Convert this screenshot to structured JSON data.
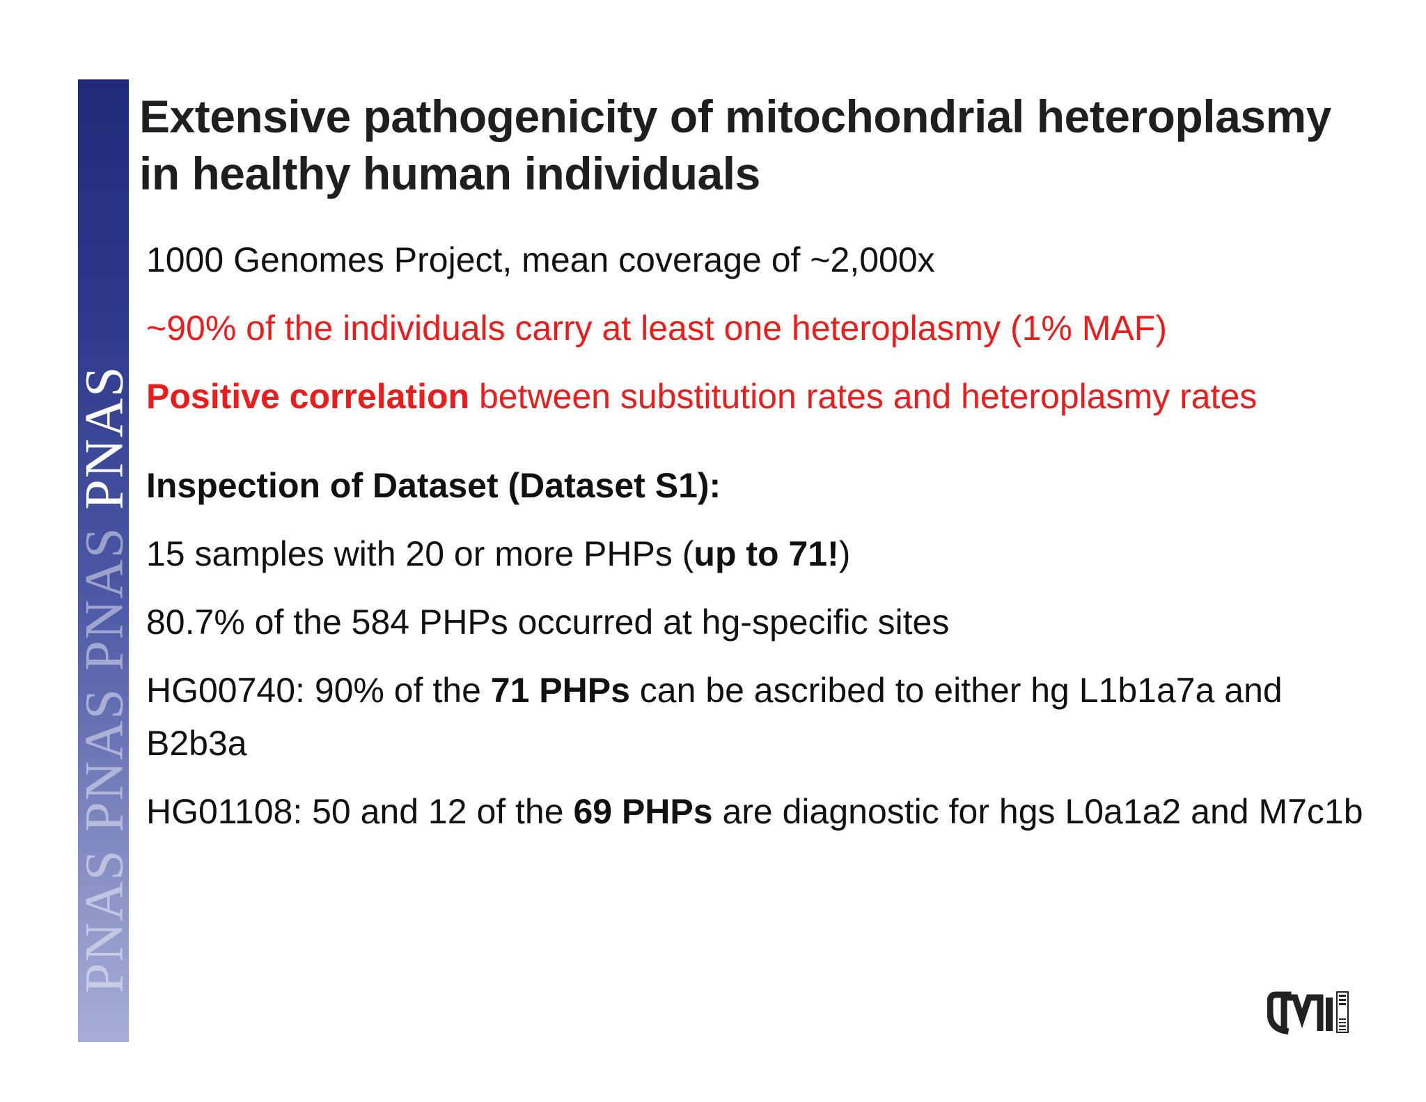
{
  "banner": {
    "words": [
      "PNAS",
      "PNAS",
      "PNAS",
      "PNAS"
    ]
  },
  "title": {
    "line1": "Extensive pathogenicity of mitochondrial heteroplasmy",
    "line2": "in healthy human individuals"
  },
  "bullets": {
    "b1": "1000 Genomes Project, mean coverage of ~2,000x",
    "b2": "~90% of the individuals carry at least one heteroplasmy (1% MAF)",
    "b3_bold": "Positive correlation",
    "b3_rest": " between substitution rates and heteroplasmy rates"
  },
  "inspection": {
    "heading": "Inspection of Dataset (Dataset S1):",
    "l1_pre": "15 samples with 20 or more PHPs (",
    "l1_bold": "up to 71!",
    "l1_post": ")",
    "l2": "80.7% of the 584 PHPs occurred at hg-specific sites",
    "l3_pre": "HG00740: 90% of the ",
    "l3_bold": "71 PHPs",
    "l3_post": " can be ascribed to either hg L1b1a7a and B2b3a",
    "l4_pre": "HG01108: 50 and 12 of the ",
    "l4_bold": "69 PHPs",
    "l4_post": " are diagnostic for hgs L0a1a2 and M7c1b"
  },
  "logo": {
    "text": "GMI",
    "side_text": "DNA"
  },
  "colors": {
    "accent_red": "#ee1b1b",
    "banner_blue": "#2d3a8c"
  }
}
